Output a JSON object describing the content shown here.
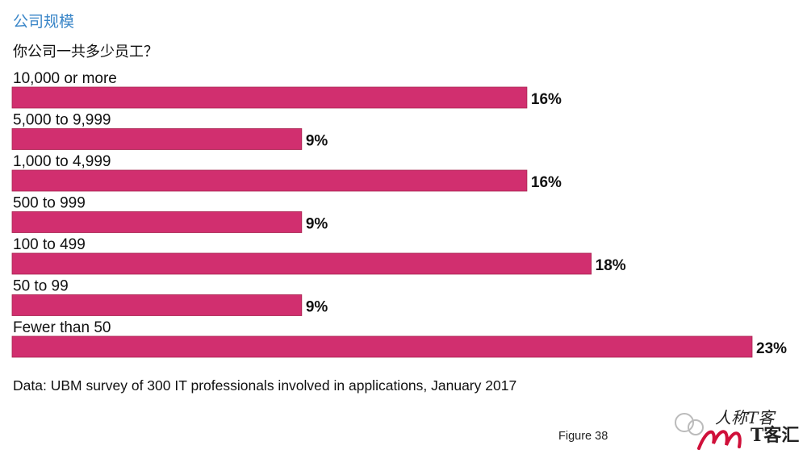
{
  "section_title": "公司规模",
  "question": "你公司一共多少员工？",
  "footnote": "Data: UBM survey of 300 IT professionals involved in applications, January 2017",
  "figure_label": "Figure 38",
  "watermark": {
    "line1": "人称T客",
    "line2": "T客汇"
  },
  "colors": {
    "bar": "#d12f6f",
    "title": "#3a86c8"
  },
  "chart_data": {
    "type": "bar",
    "orientation": "horizontal",
    "categories": [
      "10,000 or more",
      "5,000 to 9,999",
      "1,000 to 4,999",
      "500 to 999",
      "100 to 499",
      "50 to 99",
      "Fewer than 50"
    ],
    "values": [
      16,
      9,
      16,
      9,
      18,
      9,
      23
    ],
    "value_labels": [
      "16%",
      "9%",
      "16%",
      "9%",
      "18%",
      "9%",
      "23%"
    ],
    "unit": "%",
    "xlim": [
      0,
      23
    ],
    "grid": false,
    "legend": "none"
  }
}
